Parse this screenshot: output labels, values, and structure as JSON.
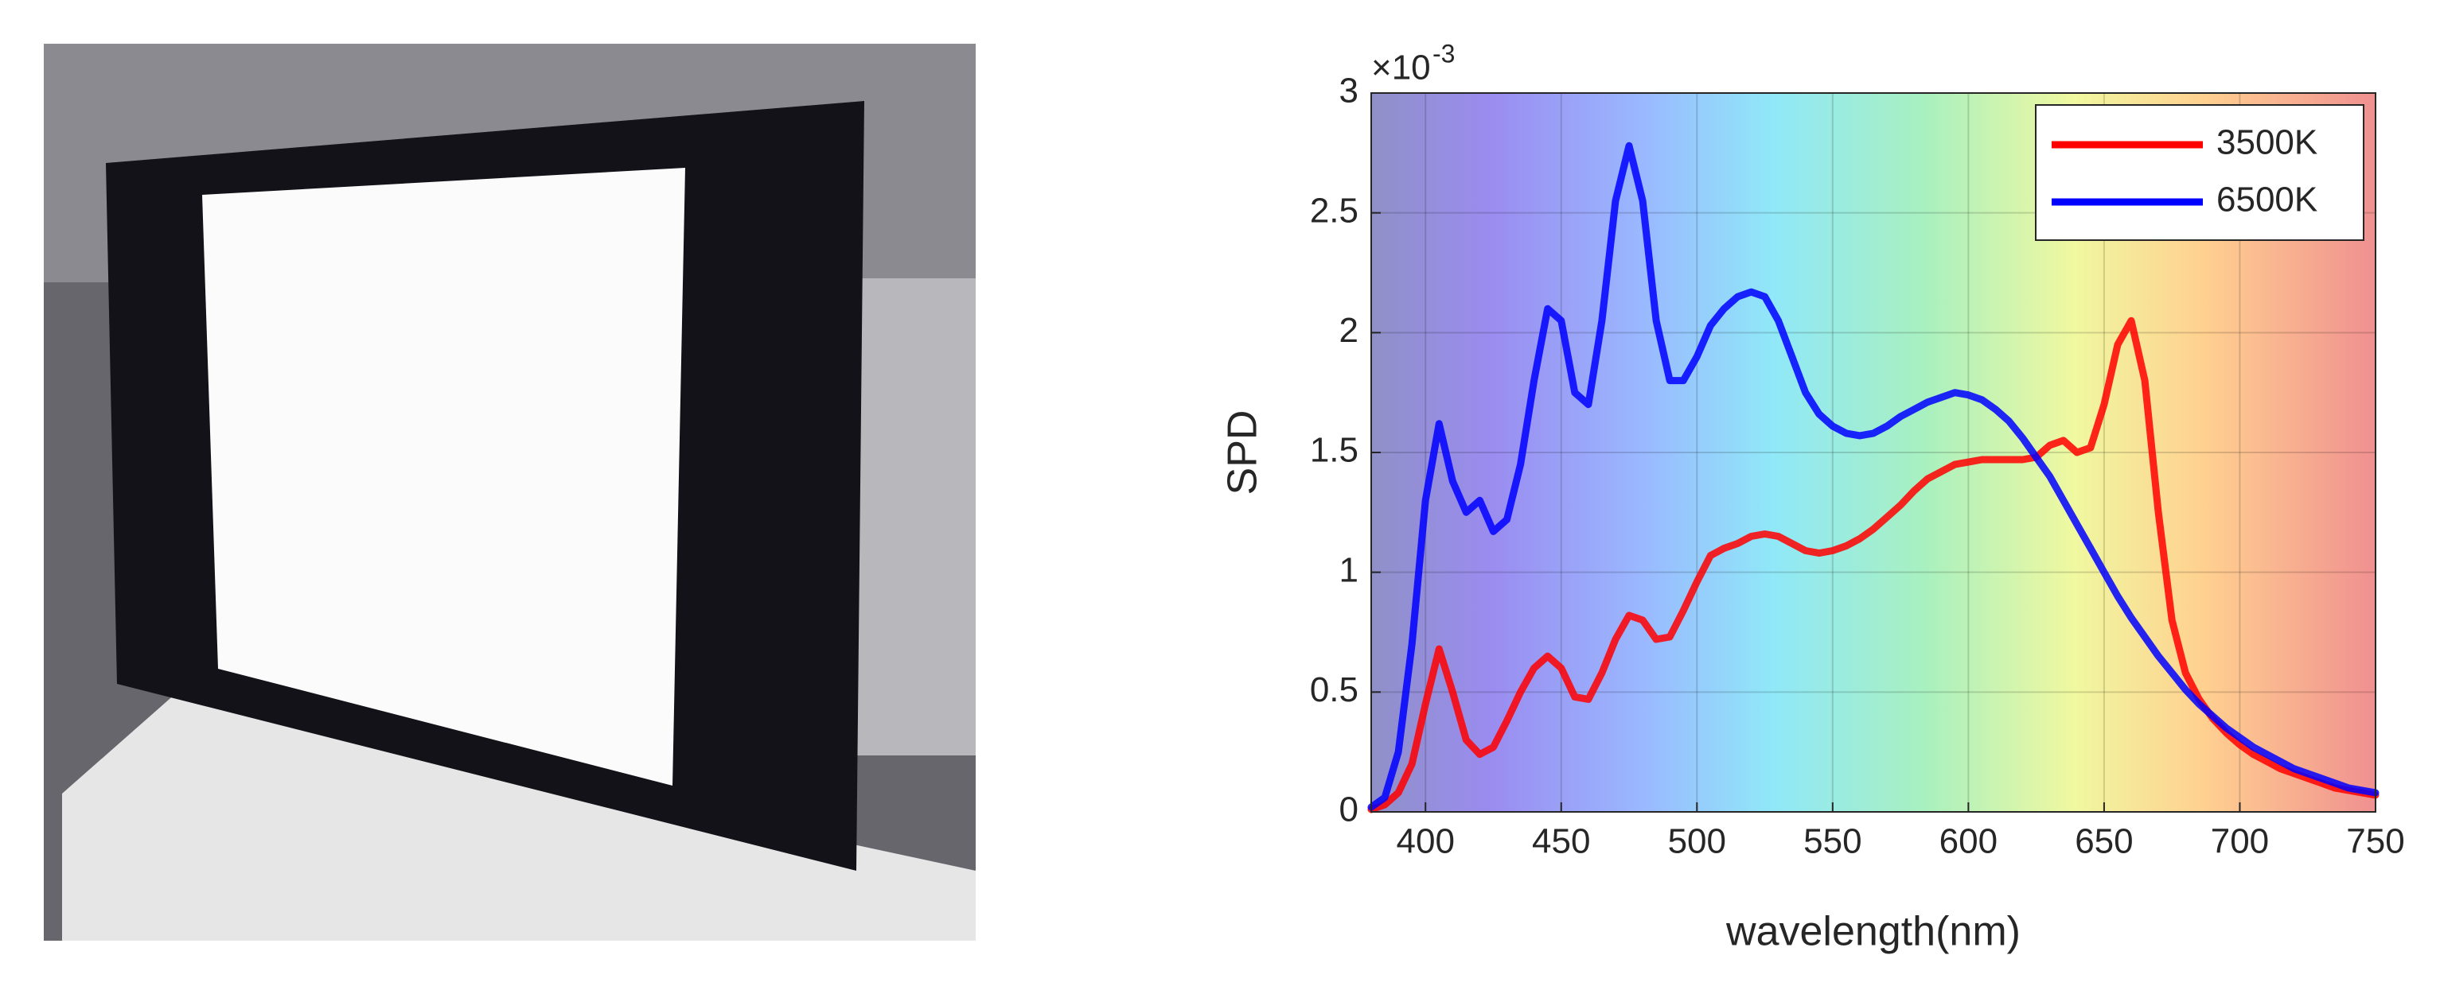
{
  "chart_data": {
    "type": "line",
    "xlabel": "wavelength(nm)",
    "ylabel": "SPD",
    "y_multiplier": "×10",
    "y_multiplier_exponent": "-3",
    "xlim": [
      380,
      750
    ],
    "xticks": [
      400,
      450,
      500,
      550,
      600,
      650,
      700,
      750
    ],
    "ylim": [
      0,
      3
    ],
    "yticks": [
      0,
      0.5,
      1,
      1.5,
      2,
      2.5,
      3
    ],
    "grid": true,
    "legend": "top-right",
    "x": [
      380,
      385,
      390,
      395,
      400,
      405,
      410,
      415,
      420,
      425,
      430,
      435,
      440,
      445,
      450,
      455,
      460,
      465,
      470,
      475,
      480,
      485,
      490,
      495,
      500,
      505,
      510,
      515,
      520,
      525,
      530,
      535,
      540,
      545,
      550,
      555,
      560,
      565,
      570,
      575,
      580,
      585,
      590,
      595,
      600,
      605,
      610,
      615,
      620,
      625,
      630,
      635,
      640,
      645,
      650,
      655,
      660,
      665,
      670,
      675,
      680,
      685,
      690,
      695,
      700,
      705,
      710,
      715,
      720,
      725,
      730,
      735,
      740,
      745,
      750
    ],
    "series": [
      {
        "name": "3500K",
        "color": "#ff0000",
        "values": [
          0.01,
          0.03,
          0.08,
          0.2,
          0.45,
          0.68,
          0.5,
          0.3,
          0.24,
          0.27,
          0.38,
          0.5,
          0.6,
          0.65,
          0.6,
          0.48,
          0.47,
          0.58,
          0.72,
          0.82,
          0.8,
          0.72,
          0.73,
          0.84,
          0.96,
          1.07,
          1.1,
          1.12,
          1.15,
          1.16,
          1.15,
          1.12,
          1.09,
          1.08,
          1.09,
          1.11,
          1.14,
          1.18,
          1.23,
          1.28,
          1.34,
          1.39,
          1.42,
          1.45,
          1.46,
          1.47,
          1.47,
          1.47,
          1.47,
          1.48,
          1.53,
          1.55,
          1.5,
          1.52,
          1.7,
          1.95,
          2.05,
          1.8,
          1.25,
          0.8,
          0.58,
          0.47,
          0.39,
          0.33,
          0.28,
          0.24,
          0.21,
          0.18,
          0.16,
          0.14,
          0.12,
          0.1,
          0.09,
          0.08,
          0.07
        ]
      },
      {
        "name": "6500K",
        "color": "#0000ff",
        "values": [
          0.02,
          0.06,
          0.25,
          0.7,
          1.3,
          1.62,
          1.38,
          1.25,
          1.3,
          1.17,
          1.22,
          1.45,
          1.8,
          2.1,
          2.05,
          1.75,
          1.7,
          2.05,
          2.55,
          2.78,
          2.55,
          2.05,
          1.8,
          1.8,
          1.9,
          2.03,
          2.1,
          2.15,
          2.17,
          2.15,
          2.05,
          1.9,
          1.75,
          1.66,
          1.61,
          1.58,
          1.57,
          1.58,
          1.61,
          1.65,
          1.68,
          1.71,
          1.73,
          1.75,
          1.74,
          1.72,
          1.68,
          1.63,
          1.56,
          1.48,
          1.4,
          1.3,
          1.2,
          1.1,
          1.0,
          0.9,
          0.81,
          0.73,
          0.65,
          0.58,
          0.51,
          0.45,
          0.4,
          0.35,
          0.31,
          0.27,
          0.24,
          0.21,
          0.18,
          0.16,
          0.14,
          0.12,
          0.1,
          0.09,
          0.08
        ]
      }
    ]
  }
}
